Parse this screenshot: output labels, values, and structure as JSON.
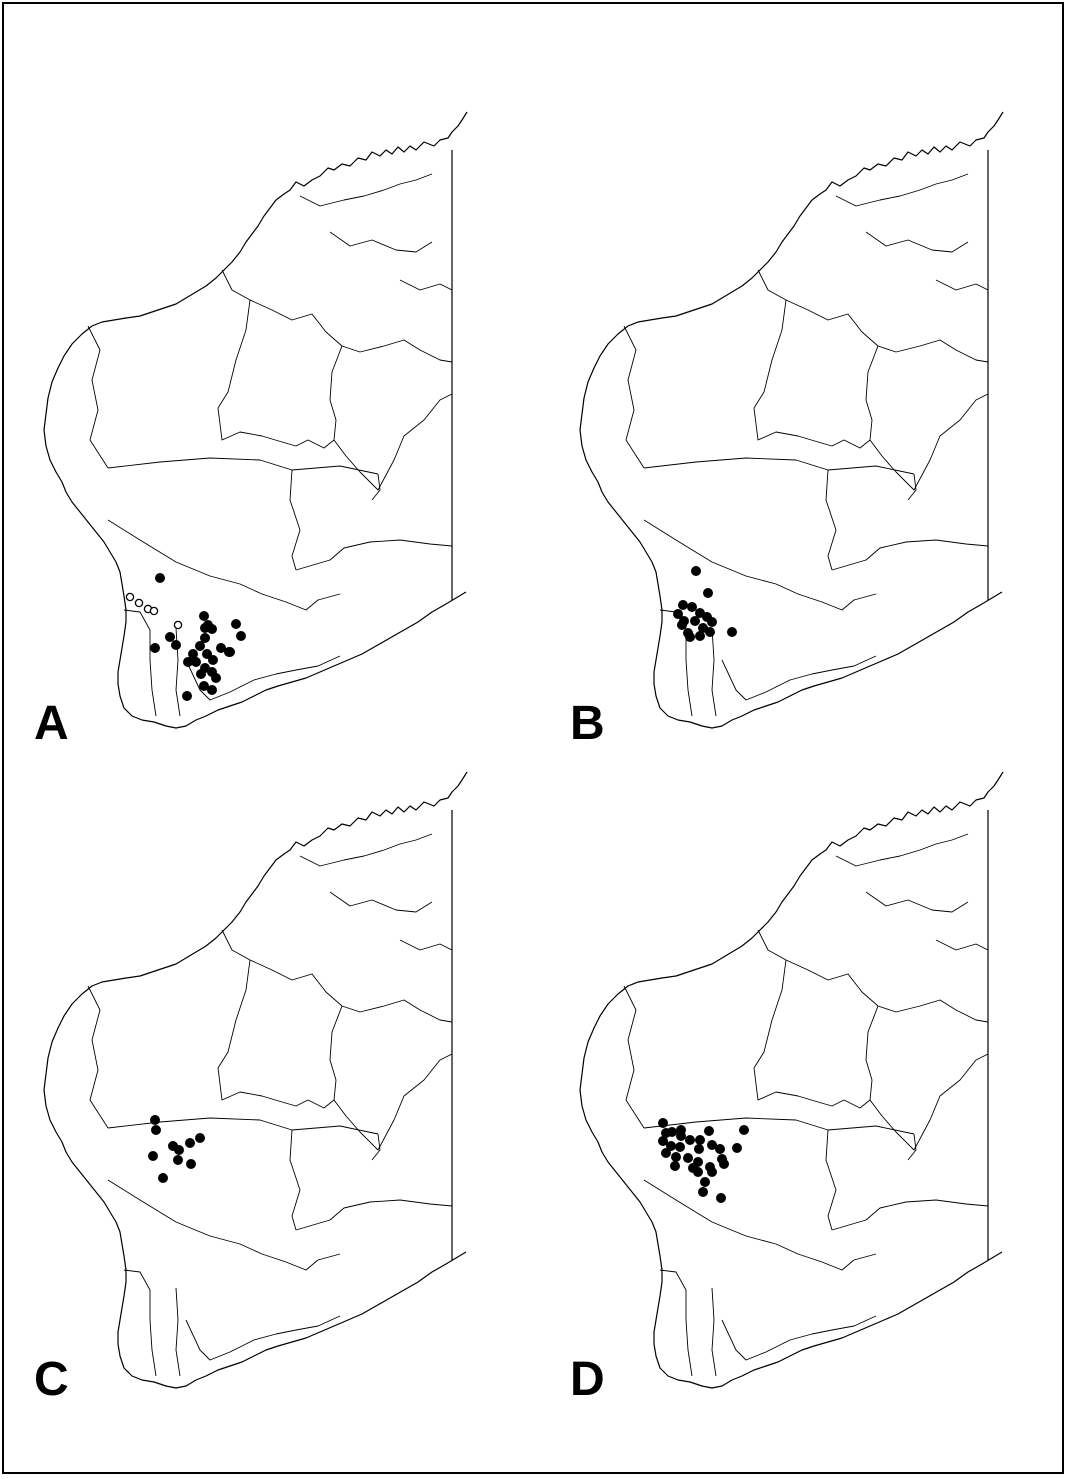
{
  "figure": {
    "panels": [
      {
        "label": "A",
        "records_filled": [
          [
            160,
            578
          ],
          [
            170,
            637
          ],
          [
            176,
            645
          ],
          [
            204,
            616
          ],
          [
            205,
            628
          ],
          [
            208,
            625
          ],
          [
            212,
            629
          ],
          [
            236,
            624
          ],
          [
            241,
            636
          ],
          [
            221,
            648
          ],
          [
            230,
            652
          ],
          [
            205,
            638
          ],
          [
            200,
            646
          ],
          [
            193,
            654
          ],
          [
            188,
            662
          ],
          [
            196,
            662
          ],
          [
            207,
            654
          ],
          [
            213,
            660
          ],
          [
            205,
            668
          ],
          [
            201,
            674
          ],
          [
            212,
            672
          ],
          [
            216,
            678
          ],
          [
            204,
            686
          ],
          [
            212,
            690
          ],
          [
            155,
            648
          ],
          [
            187,
            696
          ],
          [
            229,
            652
          ]
        ],
        "records_open": [
          [
            130,
            597
          ],
          [
            139,
            603
          ],
          [
            148,
            609
          ],
          [
            154,
            611
          ],
          [
            178,
            625
          ]
        ]
      },
      {
        "label": "B",
        "records_filled": [
          [
            696,
            571
          ],
          [
            708,
            593
          ],
          [
            683,
            605
          ],
          [
            692,
            607
          ],
          [
            700,
            613
          ],
          [
            707,
            617
          ],
          [
            712,
            622
          ],
          [
            678,
            614
          ],
          [
            684,
            621
          ],
          [
            695,
            621
          ],
          [
            703,
            628
          ],
          [
            710,
            632
          ],
          [
            688,
            633
          ],
          [
            700,
            636
          ],
          [
            682,
            625
          ],
          [
            732,
            632
          ],
          [
            690,
            637
          ]
        ],
        "records_open": []
      },
      {
        "label": "C",
        "records_filled": [
          [
            155,
            1120
          ],
          [
            156,
            1130
          ],
          [
            173,
            1146
          ],
          [
            179,
            1150
          ],
          [
            190,
            1143
          ],
          [
            200,
            1138
          ],
          [
            178,
            1160
          ],
          [
            153,
            1156
          ],
          [
            191,
            1164
          ],
          [
            163,
            1178
          ]
        ],
        "records_open": []
      },
      {
        "label": "D",
        "records_filled": [
          [
            663,
            1123
          ],
          [
            672,
            1132
          ],
          [
            681,
            1136
          ],
          [
            690,
            1140
          ],
          [
            709,
            1131
          ],
          [
            744,
            1130
          ],
          [
            663,
            1141
          ],
          [
            671,
            1146
          ],
          [
            680,
            1147
          ],
          [
            699,
            1149
          ],
          [
            712,
            1145
          ],
          [
            720,
            1149
          ],
          [
            737,
            1148
          ],
          [
            666,
            1153
          ],
          [
            676,
            1157
          ],
          [
            688,
            1158
          ],
          [
            698,
            1162
          ],
          [
            722,
            1159
          ],
          [
            675,
            1166
          ],
          [
            693,
            1168
          ],
          [
            710,
            1167
          ],
          [
            698,
            1172
          ],
          [
            712,
            1172
          ],
          [
            705,
            1182
          ],
          [
            703,
            1192
          ],
          [
            721,
            1198
          ],
          [
            666,
            1133
          ],
          [
            681,
            1130
          ],
          [
            700,
            1140
          ],
          [
            724,
            1164
          ]
        ],
        "records_open": []
      }
    ]
  }
}
